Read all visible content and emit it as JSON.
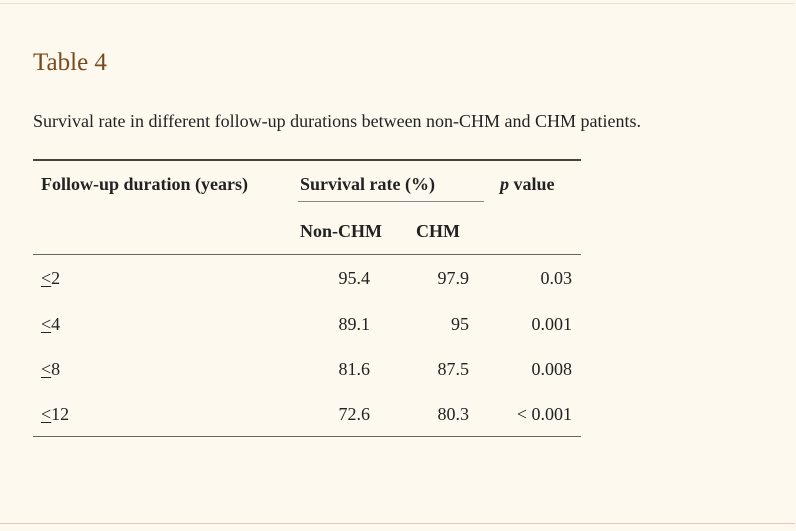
{
  "table": {
    "label": "Table 4",
    "caption": "Survival rate in different follow-up durations between non-CHM and CHM patients.",
    "headers": {
      "duration": "Follow-up duration (years)",
      "survival_rate": "Survival rate (%)",
      "p_letter": "p",
      "p_rest": " value",
      "non_chm": "Non-CHM",
      "chm": "CHM"
    },
    "rows": [
      {
        "symbol": "<",
        "duration": "2",
        "non_chm": "95.4",
        "chm": "97.9",
        "p": "0.03"
      },
      {
        "symbol": "<",
        "duration": "4",
        "non_chm": "89.1",
        "chm": "95",
        "p": "0.001"
      },
      {
        "symbol": "<",
        "duration": "8",
        "non_chm": "81.6",
        "chm": "87.5",
        "p": "0.008"
      },
      {
        "symbol": "<",
        "duration": "12",
        "non_chm": "72.6",
        "chm": "80.3",
        "p": "< 0.001"
      }
    ]
  }
}
